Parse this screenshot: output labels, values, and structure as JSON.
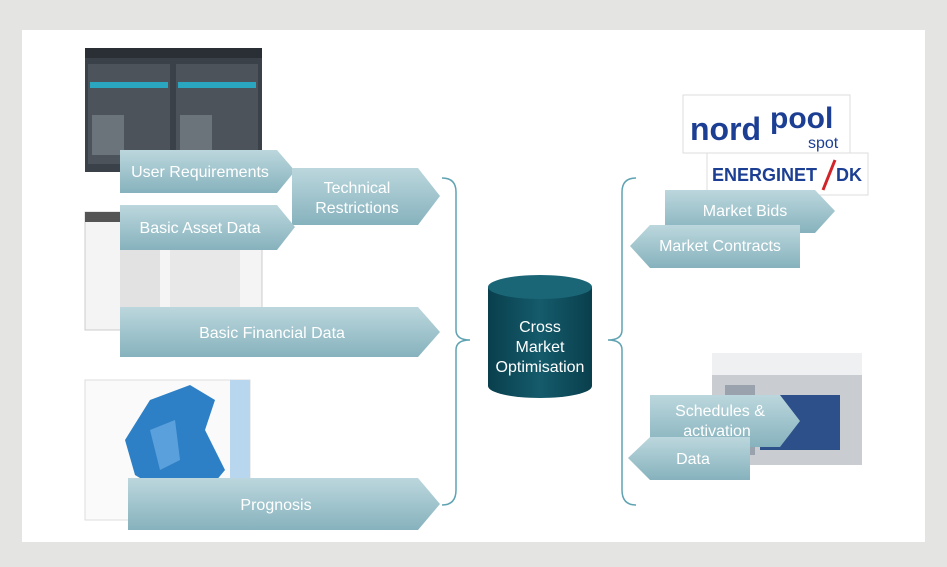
{
  "inputs": [
    {
      "lines": [
        "User Requirements"
      ]
    },
    {
      "lines": [
        "Technical",
        "Restrictions"
      ]
    },
    {
      "lines": [
        "Basic Asset Data"
      ]
    },
    {
      "lines": [
        "Basic Financial Data"
      ]
    },
    {
      "lines": [
        "Prognosis"
      ]
    }
  ],
  "center": {
    "lines": [
      "Cross",
      "Market",
      "Optimisation"
    ]
  },
  "outputs": [
    {
      "lines": [
        "Market Bids"
      ]
    },
    {
      "lines": [
        "Market Contracts"
      ]
    },
    {
      "lines": [
        "Schedules &",
        "activation"
      ]
    },
    {
      "lines": [
        "Data"
      ]
    }
  ],
  "logos": {
    "nordpool": [
      "nord",
      "pool",
      "spot"
    ],
    "energinet": [
      "ENERGINET",
      "DK"
    ]
  }
}
